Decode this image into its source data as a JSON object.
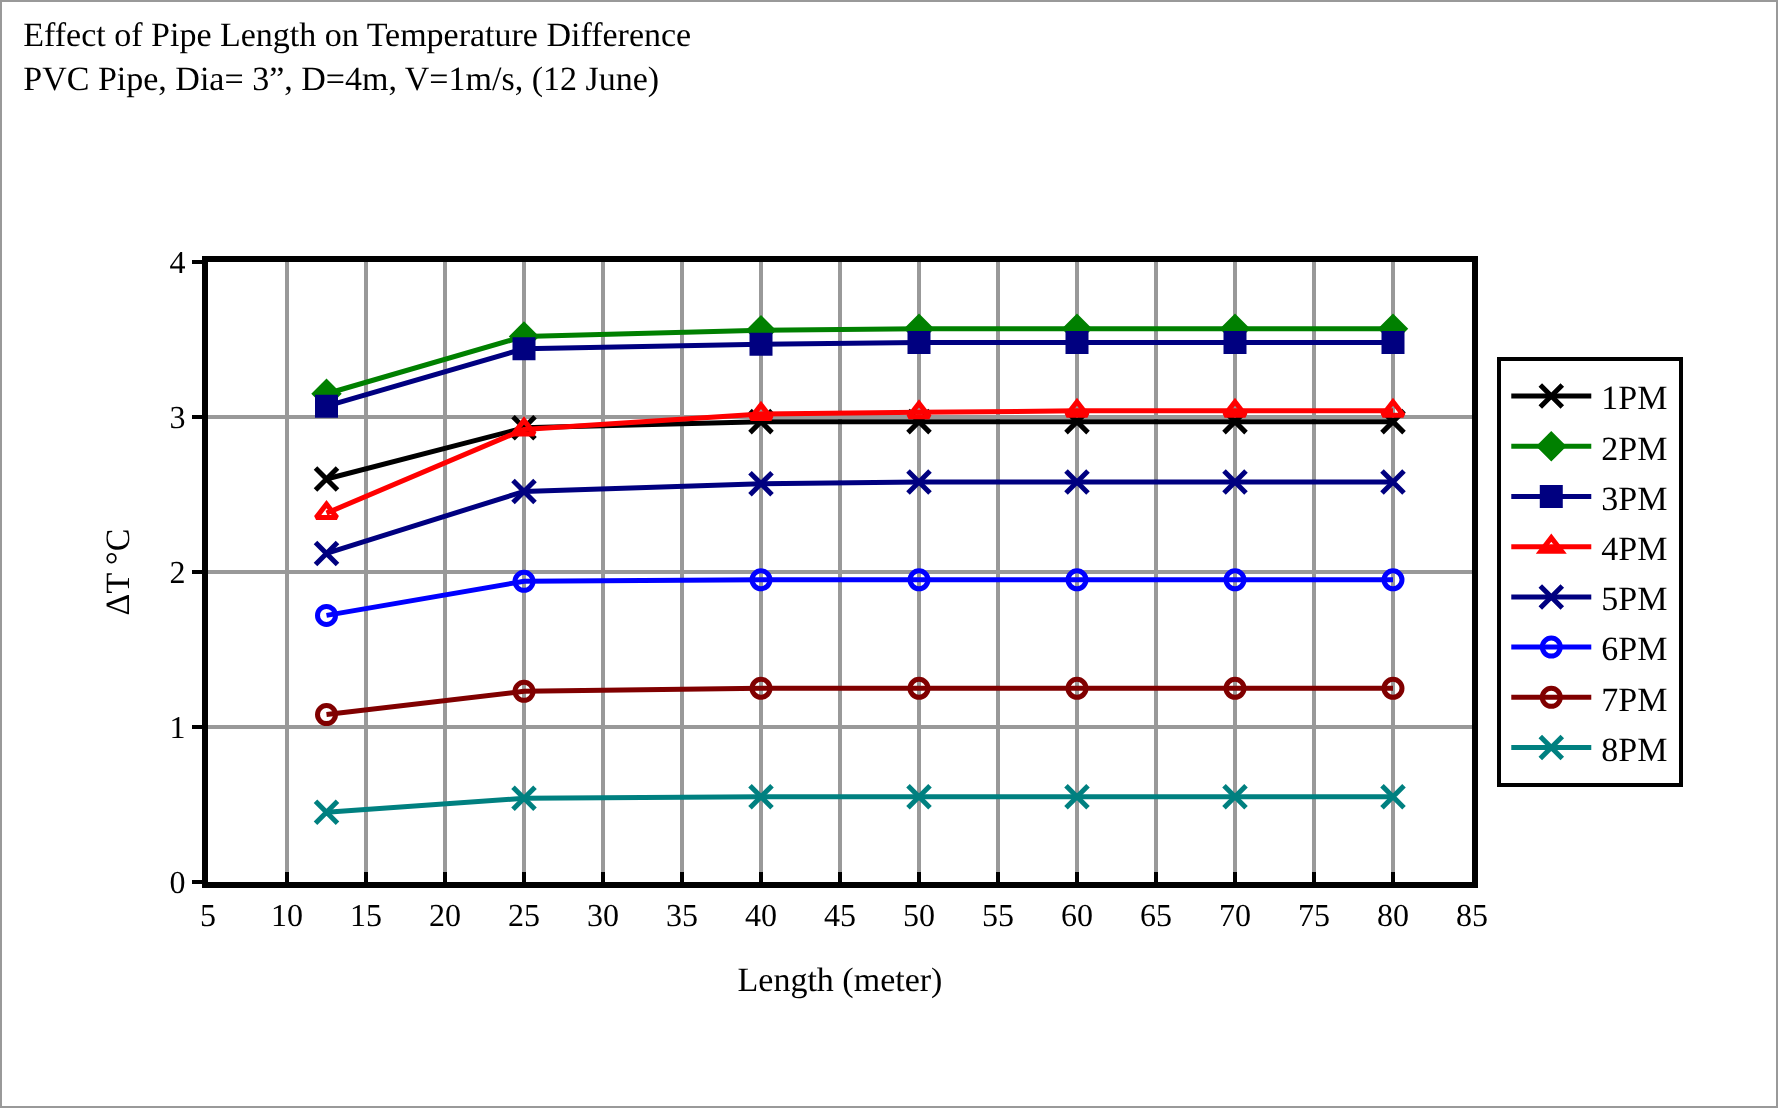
{
  "chart_data": {
    "type": "line",
    "title": "Effect of Pipe Length on Temperature Difference",
    "subtitle": "PVC Pipe, Dia= 3”, D=4m, V=1m/s, (12 June)",
    "xlabel": "Length (meter)",
    "ylabel": "ΔT °C",
    "x": [
      12.5,
      25,
      40,
      50,
      60,
      70,
      80
    ],
    "series": [
      {
        "name": "1PM",
        "color": "#000000",
        "marker": "cross",
        "values": [
          2.6,
          2.93,
          2.97,
          2.97,
          2.97,
          2.97,
          2.97
        ]
      },
      {
        "name": "2PM",
        "color": "#008000",
        "marker": "diamond",
        "values": [
          3.15,
          3.52,
          3.56,
          3.57,
          3.57,
          3.57,
          3.57
        ]
      },
      {
        "name": "3PM",
        "color": "#000080",
        "marker": "square",
        "values": [
          3.07,
          3.44,
          3.47,
          3.48,
          3.48,
          3.48,
          3.48
        ]
      },
      {
        "name": "4PM",
        "color": "#ff0000",
        "marker": "triangle",
        "values": [
          2.38,
          2.92,
          3.02,
          3.03,
          3.04,
          3.04,
          3.04
        ]
      },
      {
        "name": "5PM",
        "color": "#000080",
        "marker": "cross",
        "values": [
          2.12,
          2.52,
          2.57,
          2.58,
          2.58,
          2.58,
          2.58
        ]
      },
      {
        "name": "6PM",
        "color": "#0000ff",
        "marker": "circle",
        "values": [
          1.72,
          1.94,
          1.95,
          1.95,
          1.95,
          1.95,
          1.95
        ]
      },
      {
        "name": "7PM",
        "color": "#800000",
        "marker": "circle",
        "values": [
          1.08,
          1.23,
          1.25,
          1.25,
          1.25,
          1.25,
          1.25
        ]
      },
      {
        "name": "8PM",
        "color": "#008080",
        "marker": "cross",
        "values": [
          0.45,
          0.54,
          0.55,
          0.55,
          0.55,
          0.55,
          0.55
        ]
      }
    ],
    "xlim": [
      5,
      85
    ],
    "xticks": [
      5,
      10,
      15,
      20,
      25,
      30,
      35,
      40,
      45,
      50,
      55,
      60,
      65,
      70,
      75,
      80,
      85
    ],
    "ylim": [
      0,
      4
    ],
    "yticks": [
      0,
      1,
      2,
      3,
      4
    ],
    "grid": true,
    "legend": "right",
    "line_style": "solid"
  }
}
